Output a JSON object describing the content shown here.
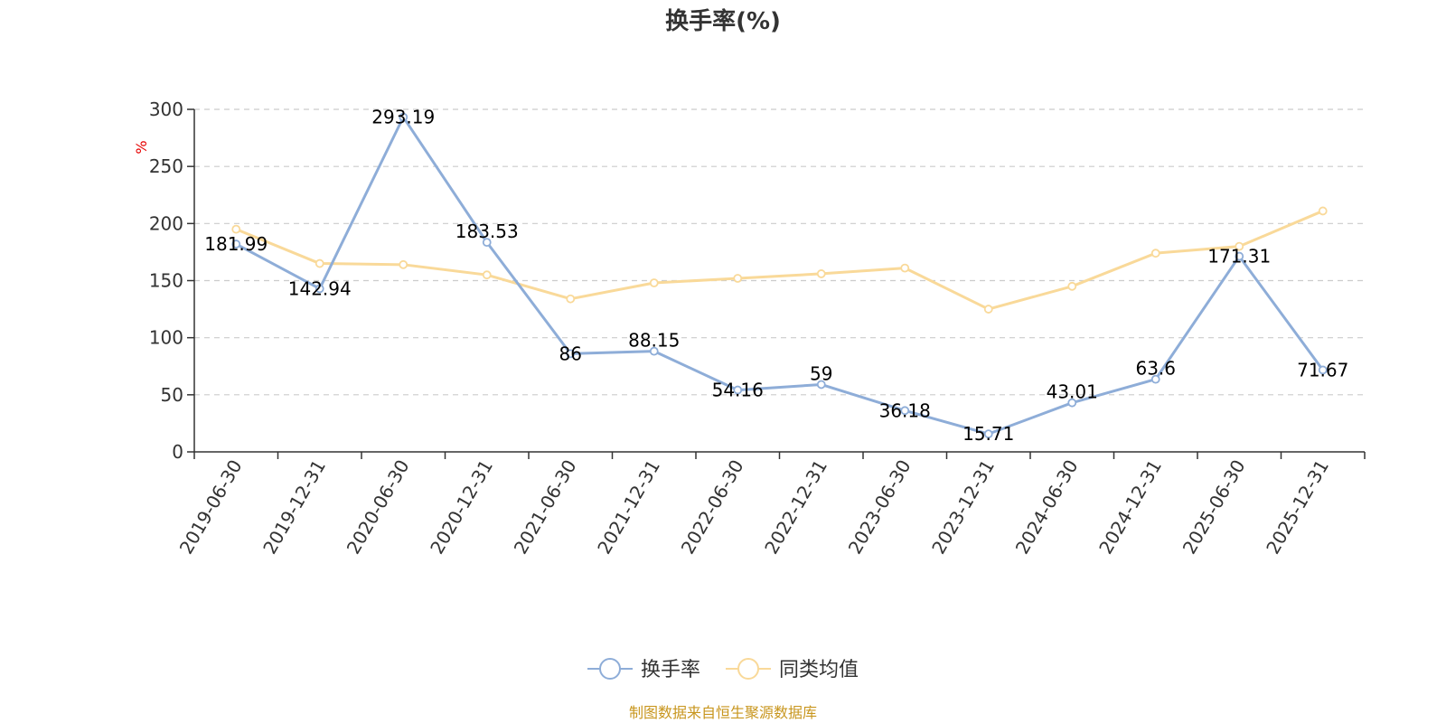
{
  "chart_data": {
    "type": "line",
    "title": "换手率(%)",
    "ylabel": "%",
    "ylim": [
      0,
      300
    ],
    "yticks": [
      0,
      50,
      100,
      150,
      200,
      250,
      300
    ],
    "grid": true,
    "legend_position": "bottom",
    "categories": [
      "2019-06-30",
      "2019-12-31",
      "2020-06-30",
      "2020-12-31",
      "2021-06-30",
      "2021-12-31",
      "2022-06-30",
      "2022-12-31",
      "2023-06-30",
      "2023-12-31",
      "2024-06-30",
      "2024-12-31",
      "2025-06-30",
      "2025-12-31"
    ],
    "series": [
      {
        "name": "换手率",
        "color": "#8eadd8",
        "values": [
          181.99,
          142.94,
          293.19,
          183.53,
          86,
          88.15,
          54.16,
          59,
          36.18,
          15.71,
          43.01,
          63.6,
          171.31,
          71.67
        ],
        "labels": [
          "181.99",
          "142.94",
          "293.19",
          "183.53",
          "86",
          "88.15",
          "54.16",
          "59",
          "36.18",
          "15.71",
          "43.01",
          "63.6",
          "171.31",
          "71.67"
        ]
      },
      {
        "name": "同类均值",
        "color": "#f9d999",
        "values": [
          195,
          165,
          164,
          155,
          134,
          148,
          152,
          156,
          161,
          125,
          145,
          174,
          180,
          211
        ]
      }
    ],
    "source": "制图数据来自恒生聚源数据库"
  }
}
